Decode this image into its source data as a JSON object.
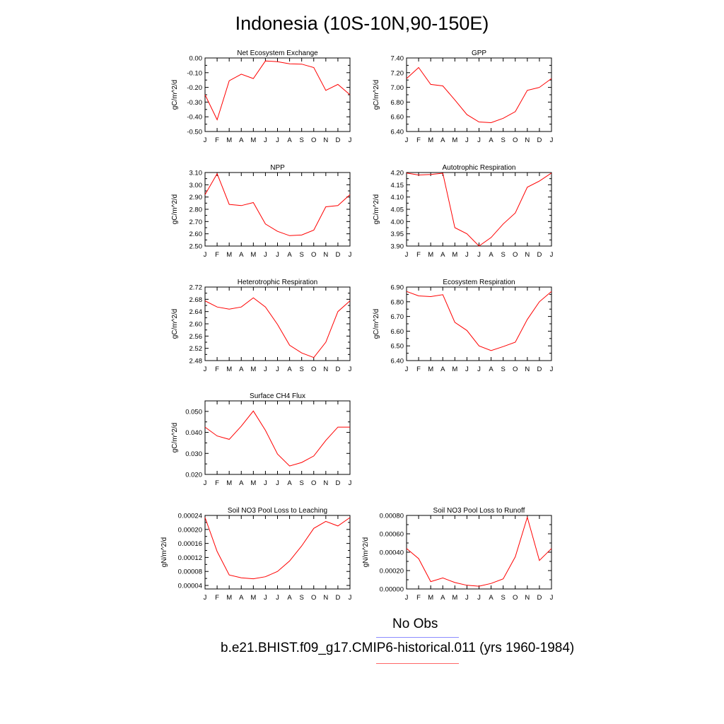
{
  "title": "Indonesia (10S-10N,90-150E)",
  "legend": {
    "obs_label": "No Obs",
    "obs_color": "#8c8cff",
    "model_label": "b.e21.BHIST.f09_g17.CMIP6-historical.011 (yrs 1960-1984)",
    "model_color": "#ff0000"
  },
  "chart_data": [
    {
      "type": "line",
      "title": "Net Ecosystem Exchange",
      "ylabel": "gC/m^2/d",
      "categories": [
        "J",
        "F",
        "M",
        "A",
        "M",
        "J",
        "J",
        "A",
        "S",
        "O",
        "N",
        "D",
        "J"
      ],
      "ylim": [
        -0.5,
        0.0
      ],
      "yticks": [
        "0.00",
        "-0.10",
        "-0.20",
        "-0.30",
        "-0.40",
        "-0.50"
      ],
      "ytick_values": [
        0.0,
        -0.1,
        -0.2,
        -0.3,
        -0.4,
        -0.5
      ],
      "values": [
        -0.25,
        -0.42,
        -0.155,
        -0.11,
        -0.14,
        -0.02,
        -0.025,
        -0.04,
        -0.042,
        -0.065,
        -0.22,
        -0.18,
        -0.25
      ]
    },
    {
      "type": "line",
      "title": "GPP",
      "ylabel": "gC/m^2/d",
      "categories": [
        "J",
        "F",
        "M",
        "A",
        "M",
        "J",
        "J",
        "A",
        "S",
        "O",
        "N",
        "D",
        "J"
      ],
      "ylim": [
        6.4,
        7.4
      ],
      "yticks": [
        "7.40",
        "7.20",
        "7.00",
        "6.80",
        "6.60",
        "6.40"
      ],
      "ytick_values": [
        7.4,
        7.2,
        7.0,
        6.8,
        6.6,
        6.4
      ],
      "values": [
        7.12,
        7.27,
        7.04,
        7.02,
        6.83,
        6.63,
        6.53,
        6.52,
        6.58,
        6.67,
        6.96,
        7.0,
        7.12
      ]
    },
    {
      "type": "line",
      "title": "NPP",
      "ylabel": "gC/m^2/d",
      "categories": [
        "J",
        "F",
        "M",
        "A",
        "M",
        "J",
        "J",
        "A",
        "S",
        "O",
        "N",
        "D",
        "J"
      ],
      "ylim": [
        2.5,
        3.1
      ],
      "yticks": [
        "3.10",
        "3.00",
        "2.90",
        "2.80",
        "2.70",
        "2.60",
        "2.50"
      ],
      "ytick_values": [
        3.1,
        3.0,
        2.9,
        2.8,
        2.7,
        2.6,
        2.5
      ],
      "values": [
        2.92,
        3.09,
        2.84,
        2.83,
        2.855,
        2.68,
        2.62,
        2.585,
        2.59,
        2.63,
        2.82,
        2.83,
        2.92
      ]
    },
    {
      "type": "line",
      "title": "Autotrophic Respiration",
      "ylabel": "gC/m^2/d",
      "categories": [
        "J",
        "F",
        "M",
        "A",
        "M",
        "J",
        "J",
        "A",
        "S",
        "O",
        "N",
        "D",
        "J"
      ],
      "ylim": [
        3.9,
        4.2
      ],
      "yticks": [
        "4.20",
        "4.15",
        "4.10",
        "4.05",
        "4.00",
        "3.95",
        "3.90"
      ],
      "ytick_values": [
        4.2,
        4.15,
        4.1,
        4.05,
        4.0,
        3.95,
        3.9
      ],
      "values": [
        4.198,
        4.19,
        4.192,
        4.197,
        3.975,
        3.95,
        3.9,
        3.935,
        3.99,
        4.035,
        4.14,
        4.165,
        4.198
      ]
    },
    {
      "type": "line",
      "title": "Heterotrophic Respiration",
      "ylabel": "gC/m^2/d",
      "categories": [
        "J",
        "F",
        "M",
        "A",
        "M",
        "J",
        "J",
        "A",
        "S",
        "O",
        "N",
        "D",
        "J"
      ],
      "ylim": [
        2.48,
        2.72
      ],
      "yticks": [
        "2.72",
        "2.68",
        "2.64",
        "2.60",
        "2.56",
        "2.52",
        "2.48"
      ],
      "ytick_values": [
        2.72,
        2.68,
        2.64,
        2.6,
        2.56,
        2.52,
        2.48
      ],
      "values": [
        2.675,
        2.655,
        2.648,
        2.655,
        2.685,
        2.655,
        2.598,
        2.53,
        2.505,
        2.49,
        2.54,
        2.64,
        2.675
      ]
    },
    {
      "type": "line",
      "title": "Ecosystem Respiration",
      "ylabel": "gC/m^2/d",
      "categories": [
        "J",
        "F",
        "M",
        "A",
        "M",
        "J",
        "J",
        "A",
        "S",
        "O",
        "N",
        "D",
        "J"
      ],
      "ylim": [
        6.4,
        6.9
      ],
      "yticks": [
        "6.90",
        "6.80",
        "6.70",
        "6.60",
        "6.50",
        "6.40"
      ],
      "ytick_values": [
        6.9,
        6.8,
        6.7,
        6.6,
        6.5,
        6.4
      ],
      "values": [
        6.87,
        6.84,
        6.835,
        6.848,
        6.66,
        6.605,
        6.5,
        6.468,
        6.495,
        6.525,
        6.68,
        6.8,
        6.87
      ]
    },
    {
      "type": "line",
      "title": "Surface CH4 Flux",
      "ylabel": "gC/m^2/d",
      "categories": [
        "J",
        "F",
        "M",
        "A",
        "M",
        "J",
        "J",
        "A",
        "S",
        "O",
        "N",
        "D",
        "J"
      ],
      "ylim": [
        0.02,
        0.055
      ],
      "yticks": [
        "0.050",
        "0.040",
        "0.030",
        "0.020"
      ],
      "ytick_values": [
        0.05,
        0.04,
        0.03,
        0.02
      ],
      "values": [
        0.0425,
        0.0383,
        0.0367,
        0.043,
        0.0502,
        0.041,
        0.0297,
        0.024,
        0.0257,
        0.0288,
        0.0362,
        0.0425,
        0.0425
      ]
    },
    {
      "type": "line",
      "title": "Soil NO3 Pool Loss to Leaching",
      "ylabel": "gN/m^2/d",
      "categories": [
        "J",
        "F",
        "M",
        "A",
        "M",
        "J",
        "J",
        "A",
        "S",
        "O",
        "N",
        "D",
        "J"
      ],
      "ylim": [
        3e-05,
        0.00024
      ],
      "yticks": [
        "0.00024",
        "0.00020",
        "0.00016",
        "0.00012",
        "0.00008",
        "0.00004"
      ],
      "ytick_values": [
        0.00024,
        0.0002,
        0.00016,
        0.00012,
        8e-05,
        4e-05
      ],
      "values": [
        0.000234,
        0.000137,
        7e-05,
        6.2e-05,
        5.9e-05,
        6.5e-05,
        8e-05,
        0.00011,
        0.000153,
        0.000203,
        0.000223,
        0.00021,
        0.000234
      ]
    },
    {
      "type": "line",
      "title": "Soil NO3 Pool Loss to Runoff",
      "ylabel": "gN/m^2/d",
      "categories": [
        "J",
        "F",
        "M",
        "A",
        "M",
        "J",
        "J",
        "A",
        "S",
        "O",
        "N",
        "D",
        "J"
      ],
      "ylim": [
        0.0,
        0.0008
      ],
      "yticks": [
        "0.00080",
        "0.00060",
        "0.00040",
        "0.00020",
        "0.00000"
      ],
      "ytick_values": [
        0.0008,
        0.0006,
        0.0004,
        0.0002,
        0.0
      ],
      "values": [
        0.00044,
        0.00033,
        8e-05,
        0.00012,
        7e-05,
        4e-05,
        3e-05,
        6e-05,
        0.00011,
        0.00035,
        0.00078,
        0.00031,
        0.00044
      ]
    }
  ]
}
